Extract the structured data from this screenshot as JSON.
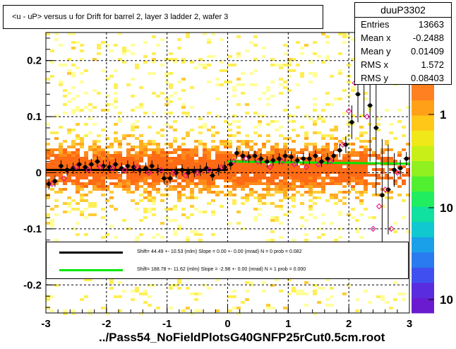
{
  "chart_data": {
    "type": "scatter",
    "title": "<u - uP>       versus   u for Drift for barrel 2, layer 3 ladder 2, wafer 3",
    "xlabel": "",
    "ylabel": "",
    "xlim": [
      -3,
      3
    ],
    "ylim": [
      -0.25,
      0.25
    ],
    "x_ticks": [
      "-3",
      "-2",
      "-1",
      "0",
      "1",
      "2",
      "3"
    ],
    "y_ticks": [
      "-0.2",
      "-0.1",
      "0",
      "0.1",
      "0.2"
    ],
    "x_tick_values": [
      -3,
      -2,
      -1,
      0,
      1,
      2,
      3
    ],
    "y_tick_values": [
      -0.2,
      -0.1,
      0,
      0.1,
      0.2
    ],
    "grid": true,
    "colorbar_labels": [
      "1",
      "10",
      "10"
    ],
    "series": [
      {
        "marker": "filled-circle",
        "color": "#000000",
        "x": [
          -2.95,
          -2.85,
          -2.75,
          -2.65,
          -2.55,
          -2.45,
          -2.35,
          -2.25,
          -2.15,
          -2.05,
          -1.95,
          -1.85,
          -1.75,
          -1.65,
          -1.55,
          -1.45,
          -1.35,
          -1.25,
          -1.15,
          -1.05,
          -0.95,
          -0.85,
          -0.75,
          -0.65,
          -0.55,
          -0.45,
          -0.35,
          -0.25,
          -0.15,
          -0.05,
          0.05,
          0.15,
          0.25,
          0.35,
          0.45,
          0.55,
          0.65,
          0.75,
          0.85,
          0.95,
          1.05,
          1.15,
          1.25,
          1.35,
          1.45,
          1.55,
          1.65,
          1.75,
          1.85,
          1.95,
          2.05,
          2.15,
          2.25,
          2.35,
          2.45,
          2.55,
          2.65,
          2.75,
          2.85,
          2.95
        ],
        "y": [
          -0.02,
          -0.015,
          0.012,
          0.005,
          0.008,
          0.015,
          0.01,
          0.015,
          0.02,
          0.012,
          0.01,
          0.015,
          0.008,
          0.012,
          0.01,
          0.005,
          0.008,
          0.012,
          0.005,
          -0.01,
          -0.01,
          0.0,
          0.005,
          0.0,
          0.002,
          0.004,
          0.008,
          -0.005,
          0.005,
          0.01,
          0.015,
          0.035,
          0.03,
          0.028,
          0.03,
          0.025,
          0.02,
          0.022,
          0.025,
          0.03,
          0.028,
          0.022,
          0.025,
          0.025,
          0.03,
          0.02,
          0.025,
          0.03,
          0.04,
          0.05,
          0.09,
          0.14,
          0.18,
          0.12,
          0.08,
          -0.04,
          -0.03,
          0.005,
          0.008,
          0.025
        ],
        "error": [
          0.01,
          0.01,
          0.01,
          0.01,
          0.01,
          0.01,
          0.01,
          0.01,
          0.01,
          0.01,
          0.01,
          0.01,
          0.01,
          0.01,
          0.01,
          0.01,
          0.01,
          0.01,
          0.01,
          0.01,
          0.01,
          0.01,
          0.01,
          0.01,
          0.01,
          0.01,
          0.01,
          0.01,
          0.01,
          0.01,
          0.01,
          0.01,
          0.01,
          0.01,
          0.01,
          0.01,
          0.01,
          0.01,
          0.01,
          0.01,
          0.01,
          0.01,
          0.01,
          0.01,
          0.01,
          0.01,
          0.01,
          0.01,
          0.012,
          0.015,
          0.03,
          0.05,
          0.08,
          0.1,
          0.12,
          0.1,
          0.08,
          0.03,
          0.015,
          0.012
        ]
      },
      {
        "marker": "open-diamond",
        "color": "#e6008c",
        "x": [
          -2.9,
          -2.7,
          -2.5,
          -2.3,
          -2.1,
          -1.9,
          -1.7,
          -1.5,
          -1.3,
          -1.1,
          -0.9,
          -0.7,
          -0.5,
          -0.3,
          -0.1,
          0.1,
          0.3,
          0.5,
          0.7,
          0.9,
          1.1,
          1.3,
          1.5,
          1.7,
          1.9,
          2.0,
          2.1,
          2.2,
          2.3,
          2.4,
          2.5,
          2.6,
          2.7,
          2.8
        ],
        "y": [
          -0.02,
          -0.01,
          0.01,
          0.005,
          0.01,
          0.008,
          0.005,
          0.01,
          0.0,
          0.005,
          0.0,
          -0.005,
          0.0,
          0.005,
          0.01,
          0.02,
          0.025,
          0.02,
          0.01,
          0.02,
          0.015,
          0.01,
          0.015,
          0.02,
          0.05,
          0.11,
          0.16,
          0.24,
          0.1,
          -0.1,
          -0.06,
          -0.03,
          -0.1,
          0.0
        ]
      }
    ],
    "fits": [
      {
        "color": "#000000",
        "x": [
          -3,
          0
        ],
        "y": [
          0.005,
          0.005
        ]
      },
      {
        "color": "#00e600",
        "x": [
          0,
          3
        ],
        "y": [
          0.02,
          0.016
        ]
      }
    ]
  },
  "title_box": {
    "text": "<u - uP>       versus   u for Drift for barrel 2, layer 3 ladder 2, wafer 3"
  },
  "stats": {
    "name": "duuP3302",
    "rows": [
      {
        "label": "Entries",
        "value": "13663"
      },
      {
        "label": "Mean x",
        "value": "-0.2488"
      },
      {
        "label": "Mean y",
        "value": "0.01409"
      },
      {
        "label": "RMS x",
        "value": "1.572"
      },
      {
        "label": "RMS y",
        "value": "0.08403"
      }
    ]
  },
  "fit_legend": {
    "line1": "Shift=    44.49 +- 10.53 (mlm) Slope =    0.00 +- 0.00 (mrad)  N = 0 prob = 0.082",
    "line2": "Shift=   188.78 +- 11.62 (mlm) Slope =   -2.98 +- 0.00 (mrad)  N = 1 prob = 0.000",
    "line1_color": "#000000",
    "line2_color": "#00e600"
  },
  "footer": {
    "text": "../Pass54_NoFieldPlotsG40GNFP25rCut0.5cm.root"
  }
}
